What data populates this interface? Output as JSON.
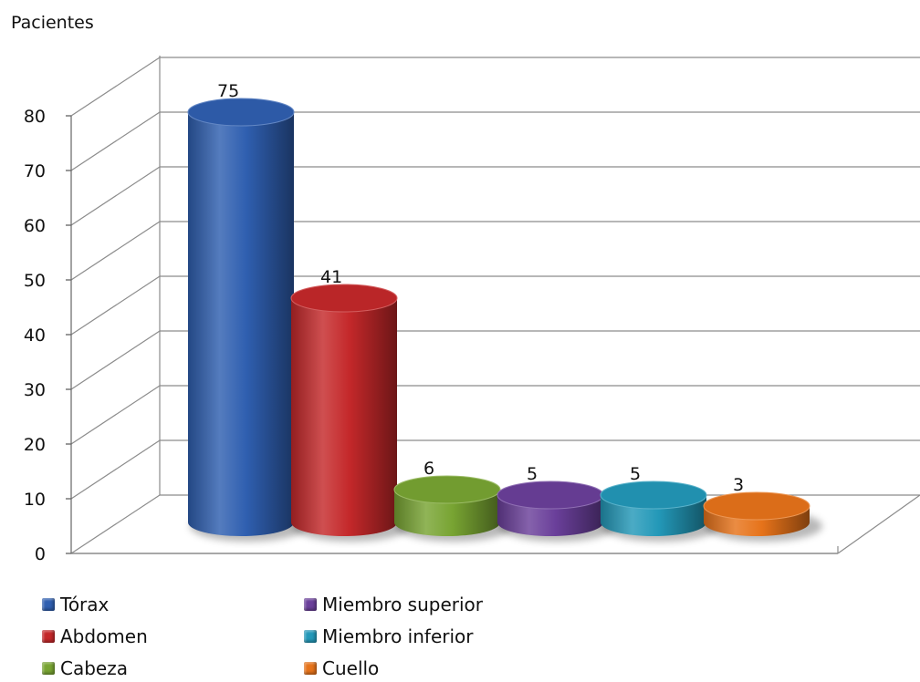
{
  "chart_data": {
    "type": "bar",
    "style": "3d-cylinder",
    "ylabel": "Pacientes",
    "xlabel": "",
    "ylim": [
      0,
      80
    ],
    "yticks": [
      0,
      10,
      20,
      30,
      40,
      50,
      60,
      70,
      80
    ],
    "grid": true,
    "legend_position": "bottom",
    "categories": [
      "Tórax",
      "Abdomen",
      "Cabeza",
      "Miembro superior",
      "Miembro inferior",
      "Cuello"
    ],
    "values": [
      75,
      41,
      6,
      5,
      5,
      3
    ],
    "colors": [
      "#2f5fb0",
      "#c4282a",
      "#78a432",
      "#6a3f9a",
      "#2398b8",
      "#e6731a"
    ]
  }
}
